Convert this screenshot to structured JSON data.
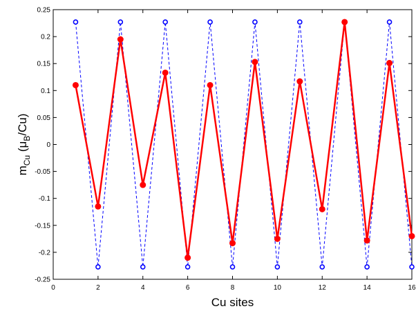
{
  "chart_data": {
    "type": "line",
    "xlabel": "Cu sites",
    "ylabel": {
      "main": "m",
      "sub": "Cu",
      "mid": " (μ",
      "sub2": "B",
      "end": "/Cu)"
    },
    "xlim": [
      0,
      16
    ],
    "ylim": [
      -0.25,
      0.25
    ],
    "x_ticks": [
      "0",
      "2",
      "4",
      "6",
      "8",
      "10",
      "12",
      "14",
      "16"
    ],
    "y_ticks": [
      "-0.25",
      "-0.2",
      "-0.15",
      "-0.1",
      "-0.05",
      "0",
      "0.05",
      "0.1",
      "0.15",
      "0.2",
      "0.25"
    ],
    "grid": false,
    "series": [
      {
        "style": "dashed-open-circles",
        "color": "#0000ff",
        "x": [
          1,
          2,
          3,
          4,
          5,
          6,
          7,
          8,
          9,
          10,
          11,
          12,
          13,
          14,
          15,
          16
        ],
        "y": [
          0.227,
          -0.227,
          0.227,
          -0.227,
          0.227,
          -0.227,
          0.227,
          -0.227,
          0.227,
          -0.227,
          0.227,
          -0.227,
          0.227,
          -0.227,
          0.227,
          -0.227
        ]
      },
      {
        "style": "solid-filled-circles",
        "color": "#ff0000",
        "x": [
          1,
          2,
          3,
          4,
          5,
          6,
          7,
          8,
          9,
          10,
          11,
          12,
          13,
          14,
          15,
          16
        ],
        "y": [
          0.11,
          -0.115,
          0.195,
          -0.075,
          0.133,
          -0.21,
          0.11,
          -0.183,
          0.153,
          -0.175,
          0.117,
          -0.12,
          0.227,
          -0.178,
          0.151,
          -0.17
        ]
      }
    ]
  }
}
